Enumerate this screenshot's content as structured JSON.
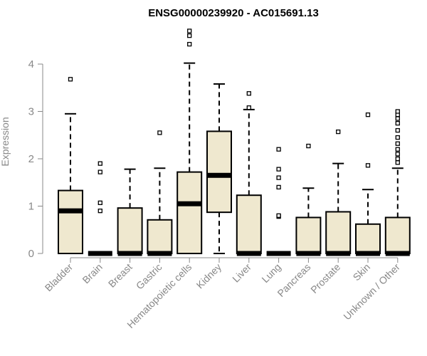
{
  "chart_data": {
    "type": "box",
    "title": "ENSG00000239920 - AC015691.13",
    "xlabel": "",
    "ylabel": "Expression",
    "ylim": [
      0,
      4.75
    ],
    "yticks": [
      0,
      1,
      2,
      3,
      4
    ],
    "grid": false,
    "colors": {
      "box_fill": "#efe8cf",
      "stroke": "#000000",
      "axis": "#888888"
    },
    "categories": [
      "Bladder",
      "Brain",
      "Breast",
      "Gastric",
      "Hematopoietic cells",
      "Kidney",
      "Liver",
      "Lung",
      "Pancreas",
      "Prostate",
      "Skin",
      "Unknown / Other"
    ],
    "boxes": [
      {
        "name": "Bladder",
        "whisker_low": 0,
        "q1": 0,
        "median": 0.9,
        "q3": 1.33,
        "whisker_high": 2.95,
        "outliers": [
          3.68
        ]
      },
      {
        "name": "Brain",
        "whisker_low": 0,
        "q1": 0,
        "median": 0,
        "q3": 0,
        "whisker_high": 0,
        "outliers": [
          0.9,
          1.07,
          1.72,
          1.9
        ]
      },
      {
        "name": "Breast",
        "whisker_low": 0,
        "q1": 0,
        "median": 0,
        "q3": 0.96,
        "whisker_high": 1.78,
        "outliers": []
      },
      {
        "name": "Gastric",
        "whisker_low": 0,
        "q1": 0,
        "median": 0,
        "q3": 0.71,
        "whisker_high": 1.8,
        "outliers": [
          2.55
        ]
      },
      {
        "name": "Hematopoietic cells",
        "whisker_low": 0,
        "q1": 0,
        "median": 1.05,
        "q3": 1.72,
        "whisker_high": 4.02,
        "outliers": [
          4.42,
          4.6,
          4.7
        ]
      },
      {
        "name": "Kidney",
        "whisker_low": 0,
        "q1": 0.87,
        "median": 1.65,
        "q3": 2.58,
        "whisker_high": 3.58,
        "outliers": []
      },
      {
        "name": "Liver",
        "whisker_low": 0,
        "q1": 0,
        "median": 0,
        "q3": 1.23,
        "whisker_high": 3.04,
        "outliers": [
          3.08,
          3.38
        ]
      },
      {
        "name": "Lung",
        "whisker_low": 0,
        "q1": 0,
        "median": 0,
        "q3": 0,
        "whisker_high": 0,
        "outliers": [
          0.78,
          0.8,
          1.4,
          1.6,
          1.78,
          2.2
        ]
      },
      {
        "name": "Pancreas",
        "whisker_low": 0,
        "q1": 0,
        "median": 0,
        "q3": 0.76,
        "whisker_high": 1.38,
        "outliers": [
          2.27
        ]
      },
      {
        "name": "Prostate",
        "whisker_low": 0,
        "q1": 0,
        "median": 0,
        "q3": 0.88,
        "whisker_high": 1.9,
        "outliers": [
          2.57
        ]
      },
      {
        "name": "Skin",
        "whisker_low": 0,
        "q1": 0,
        "median": 0,
        "q3": 0.62,
        "whisker_high": 1.35,
        "outliers": [
          1.86,
          2.93
        ]
      },
      {
        "name": "Unknown / Other",
        "whisker_low": 0,
        "q1": 0,
        "median": 0,
        "q3": 0.76,
        "whisker_high": 1.8,
        "outliers": [
          1.92,
          2.0,
          2.1,
          2.2,
          2.32,
          2.45,
          2.6,
          2.75,
          2.85,
          2.93,
          3.0
        ]
      }
    ]
  }
}
